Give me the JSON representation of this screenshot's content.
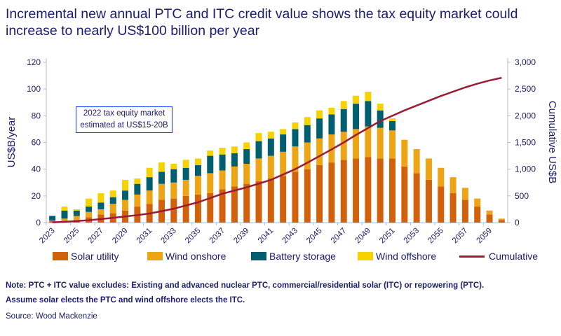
{
  "title": "Incremental new annual PTC and ITC credit value shows the tax equity market could increase to nearly US$100 billion per year",
  "annotation": "2022 tax equity market estimated at US$15-20B",
  "notes": [
    "Note: PTC + ITC value excludes: Existing and advanced nuclear PTC, commercial/residential solar (ITC) or repowering (PTC).",
    "Assume solar elects the PTC and wind offshore elects the ITC."
  ],
  "source": "Source: Wood Mackenzie",
  "colors": {
    "solar": "#d2610b",
    "wind_onshore": "#eda515",
    "battery": "#005f6e",
    "wind_offshore": "#f5d200",
    "cumulative": "#9b1a35",
    "axis_text": "#1b1c6b"
  },
  "chart_data": {
    "type": "bar",
    "stacked": true,
    "ylabel": "US$B/year",
    "y2label": "Cumulative US$B",
    "ylim": [
      0,
      120
    ],
    "y2lim": [
      0,
      3000
    ],
    "yticks": [
      "0",
      "20",
      "40",
      "60",
      "80",
      "100",
      "120"
    ],
    "y2ticks": [
      "0",
      "500",
      "1,000",
      "1,500",
      "2,000",
      "2,500",
      "3,000"
    ],
    "xtick_labels": [
      "2023",
      "2025",
      "2027",
      "2029",
      "2031",
      "2033",
      "2035",
      "2037",
      "2039",
      "2041",
      "2043",
      "2045",
      "2047",
      "2049",
      "2051",
      "2053",
      "2055",
      "2057",
      "2059"
    ],
    "categories": [
      "2023",
      "2024",
      "2025",
      "2026",
      "2027",
      "2028",
      "2029",
      "2030",
      "2031",
      "2032",
      "2033",
      "2034",
      "2035",
      "2036",
      "2037",
      "2038",
      "2039",
      "2040",
      "2041",
      "2042",
      "2043",
      "2044",
      "2045",
      "2046",
      "2047",
      "2048",
      "2049",
      "2050",
      "2051",
      "2052",
      "2053",
      "2054",
      "2055",
      "2056",
      "2057",
      "2058",
      "2059",
      "2060"
    ],
    "series": [
      {
        "name": "Solar utility",
        "key": "solar",
        "values": [
          1,
          1,
          2,
          4,
          6,
          7,
          9,
          12,
          14,
          17,
          18,
          20,
          21,
          22,
          25,
          27,
          29,
          31,
          33,
          35,
          38,
          40,
          43,
          45,
          47,
          48,
          49,
          48,
          48,
          42,
          37,
          32,
          27,
          22,
          17,
          12,
          6,
          2
        ]
      },
      {
        "name": "Wind onshore",
        "key": "wind_onshore",
        "values": [
          0.5,
          2,
          3,
          4,
          4,
          7,
          8,
          9,
          10,
          12,
          12,
          12,
          14,
          15,
          14,
          15,
          15,
          17,
          17,
          18,
          19,
          20,
          20,
          21,
          21,
          22,
          23,
          23,
          21,
          20,
          18,
          16,
          14,
          12,
          9,
          6,
          3,
          1
        ]
      },
      {
        "name": "Battery storage",
        "key": "battery",
        "values": [
          3.5,
          6,
          4,
          4,
          5,
          5,
          7,
          8,
          10,
          9,
          10,
          9,
          8,
          13,
          12,
          10,
          11,
          13,
          13,
          13,
          13,
          13,
          15,
          15,
          17,
          19,
          19,
          13,
          7,
          0,
          0,
          0,
          0,
          0,
          0,
          0,
          0,
          0
        ]
      },
      {
        "name": "Wind offshore",
        "key": "wind_offshore",
        "values": [
          0,
          3,
          1,
          6,
          7,
          5,
          8,
          4,
          7,
          7,
          4,
          6,
          5,
          4,
          5,
          5,
          5,
          6,
          5,
          4,
          5,
          6,
          6,
          5,
          6,
          6,
          7,
          5,
          2,
          0,
          0,
          0,
          0,
          0,
          0,
          0,
          0,
          0
        ]
      }
    ],
    "cumulative": {
      "name": "Cumulative",
      "values": [
        5,
        15,
        30,
        45,
        65,
        90,
        115,
        140,
        170,
        215,
        260,
        320,
        380,
        460,
        540,
        600,
        660,
        730,
        800,
        900,
        1000,
        1120,
        1245,
        1370,
        1500,
        1640,
        1770,
        1900,
        2000,
        2100,
        2190,
        2280,
        2370,
        2450,
        2530,
        2600,
        2660,
        2710
      ]
    },
    "legend_position": "bottom"
  }
}
